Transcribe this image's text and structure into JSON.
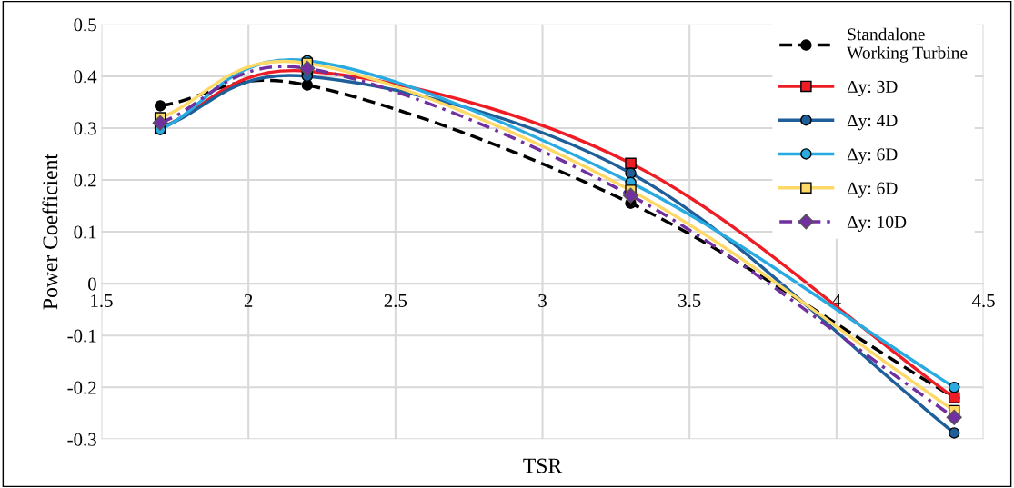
{
  "chart_data": {
    "type": "line",
    "xlabel": "TSR",
    "ylabel": "Power Coefficient",
    "xlim": [
      1.5,
      4.5
    ],
    "xticks": [
      1.5,
      2,
      2.5,
      3,
      3.5,
      4,
      4.5
    ],
    "ylim": [
      -0.3,
      0.5
    ],
    "yticks": [
      -0.3,
      -0.2,
      -0.1,
      0,
      0.1,
      0.2,
      0.3,
      0.4,
      0.5
    ],
    "grid": true,
    "legend": "top right",
    "x": [
      1.7,
      2.2,
      3.3,
      4.4
    ],
    "series": [
      {
        "name": "Standalone Working Turbine",
        "color": "#000000",
        "marker": "circle",
        "line_style": "dashed",
        "values": [
          0.343,
          0.383,
          0.155,
          -0.22
        ]
      },
      {
        "name": "Δy: 3D",
        "color": "#ee1c25",
        "marker": "square",
        "values": [
          0.3,
          0.41,
          0.232,
          -0.22
        ]
      },
      {
        "name": "Δy: 4D",
        "color": "#1f5f99",
        "marker": "circle",
        "values": [
          0.3,
          0.4,
          0.213,
          -0.288
        ]
      },
      {
        "name": "Δy: 6D",
        "color": "#29abe2",
        "marker": "circle",
        "values": [
          0.297,
          0.43,
          0.195,
          -0.2
        ]
      },
      {
        "name": "Δy: 6D",
        "color": "#ffd966",
        "marker": "square",
        "values": [
          0.32,
          0.425,
          0.18,
          -0.245
        ]
      },
      {
        "name": "Δy: 10D",
        "color": "#7030a0",
        "marker": "diamond",
        "line_style": "dashdot",
        "values": [
          0.31,
          0.415,
          0.17,
          -0.258
        ]
      }
    ]
  }
}
